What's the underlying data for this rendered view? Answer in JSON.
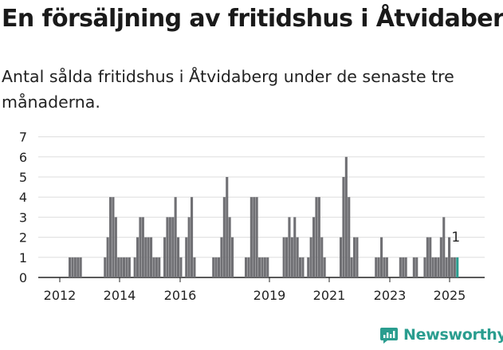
{
  "header": {
    "title": "En försäljning av fritidshus i Åtvidaberg",
    "subtitle": "Antal sålda fritidshus i Åtvidaberg under de senaste tre månaderna."
  },
  "brand": {
    "name": "Newsworthy",
    "icon": "newsworthy-logo-icon",
    "color": "#2a9d8f"
  },
  "colors": {
    "bar": "#707074",
    "highlight": "#2a9d8f",
    "grid": "#dddddd",
    "axis": "#222222"
  },
  "chart_data": {
    "type": "bar",
    "title": "",
    "xlabel": "",
    "ylabel": "",
    "ylim": [
      0,
      7
    ],
    "yticks": [
      0,
      1,
      2,
      3,
      4,
      5,
      6,
      7
    ],
    "xticks": [
      "2012",
      "2014",
      "2016",
      "2019",
      "2021",
      "2023",
      "2025"
    ],
    "grid": true,
    "annotation": {
      "text": "1",
      "target": "last-bar"
    },
    "series": [
      {
        "name": "",
        "values": [
          1,
          1,
          1,
          1,
          1,
          0,
          0,
          0,
          0,
          0,
          0,
          0,
          0,
          1,
          2,
          4,
          4,
          3,
          1,
          1,
          1,
          1,
          1,
          0,
          1,
          2,
          3,
          3,
          2,
          2,
          2,
          1,
          1,
          1,
          0,
          2,
          3,
          3,
          3,
          4,
          2,
          1,
          0,
          2,
          3,
          4,
          1,
          0,
          0,
          0,
          0,
          0,
          0,
          1,
          1,
          1,
          2,
          4,
          5,
          3,
          2,
          0,
          0,
          0,
          0,
          1,
          1,
          4,
          4,
          4,
          1,
          1,
          1,
          1,
          0,
          0,
          0,
          0,
          0,
          2,
          2,
          3,
          2,
          3,
          2,
          1,
          1,
          0,
          1,
          2,
          3,
          4,
          4,
          2,
          1,
          0,
          0,
          0,
          0,
          0,
          2,
          5,
          6,
          4,
          1,
          2,
          2,
          0,
          0,
          0,
          0,
          0,
          0,
          1,
          1,
          2,
          1,
          1,
          0,
          0,
          0,
          0,
          1,
          1,
          1,
          0,
          0,
          1,
          1,
          0,
          0,
          1,
          2,
          2,
          1,
          1,
          1,
          2,
          3,
          1,
          2,
          1,
          1,
          1
        ]
      }
    ]
  }
}
